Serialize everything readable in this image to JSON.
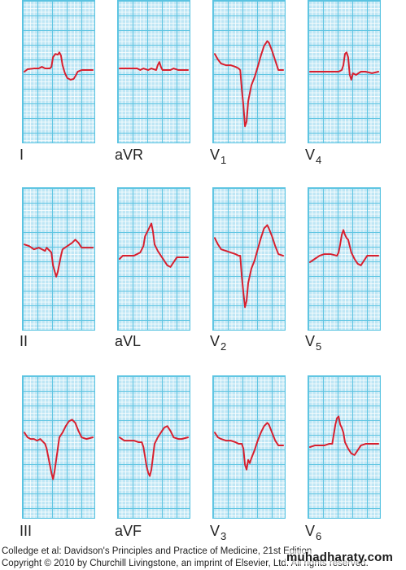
{
  "leads": [
    {
      "id": "I",
      "label": "I",
      "sub": "",
      "row": 0,
      "col": 0,
      "wave": "inf"
    },
    {
      "id": "aVR",
      "label": "aVR",
      "sub": "",
      "row": 0,
      "col": 1,
      "wave": "avr"
    },
    {
      "id": "V1",
      "label": "V",
      "sub": "1",
      "row": 0,
      "col": 2,
      "wave": "v1"
    },
    {
      "id": "V4",
      "label": "V",
      "sub": "4",
      "row": 0,
      "col": 3,
      "wave": "v4"
    },
    {
      "id": "II",
      "label": "II",
      "sub": "",
      "row": 1,
      "col": 0,
      "wave": "ii"
    },
    {
      "id": "aVL",
      "label": "aVL",
      "sub": "",
      "row": 1,
      "col": 1,
      "wave": "avl"
    },
    {
      "id": "V2",
      "label": "V",
      "sub": "2",
      "row": 1,
      "col": 2,
      "wave": "v2"
    },
    {
      "id": "V5",
      "label": "V",
      "sub": "5",
      "row": 1,
      "col": 3,
      "wave": "v5"
    },
    {
      "id": "III",
      "label": "III",
      "sub": "",
      "row": 2,
      "col": 0,
      "wave": "iii"
    },
    {
      "id": "aVF",
      "label": "aVF",
      "sub": "",
      "row": 2,
      "col": 1,
      "wave": "avf"
    },
    {
      "id": "V3",
      "label": "V",
      "sub": "3",
      "row": 2,
      "col": 2,
      "wave": "v3"
    },
    {
      "id": "V6",
      "label": "V",
      "sub": "6",
      "row": 2,
      "col": 3,
      "wave": "v6"
    }
  ],
  "caption": {
    "line1": "Colledge et al: Davidson's Principles and Practice of Medicine, 21st Edition",
    "line2": "Copyright © 2010 by Churchill Livingstone, an imprint of Elsevier, Ltd. All rights reserved."
  },
  "watermark": "muhadharaty.com",
  "colors": {
    "trace": "#d81f2e",
    "grid_bg": "#bfe6f5",
    "grid_major": "#59c3e1"
  }
}
